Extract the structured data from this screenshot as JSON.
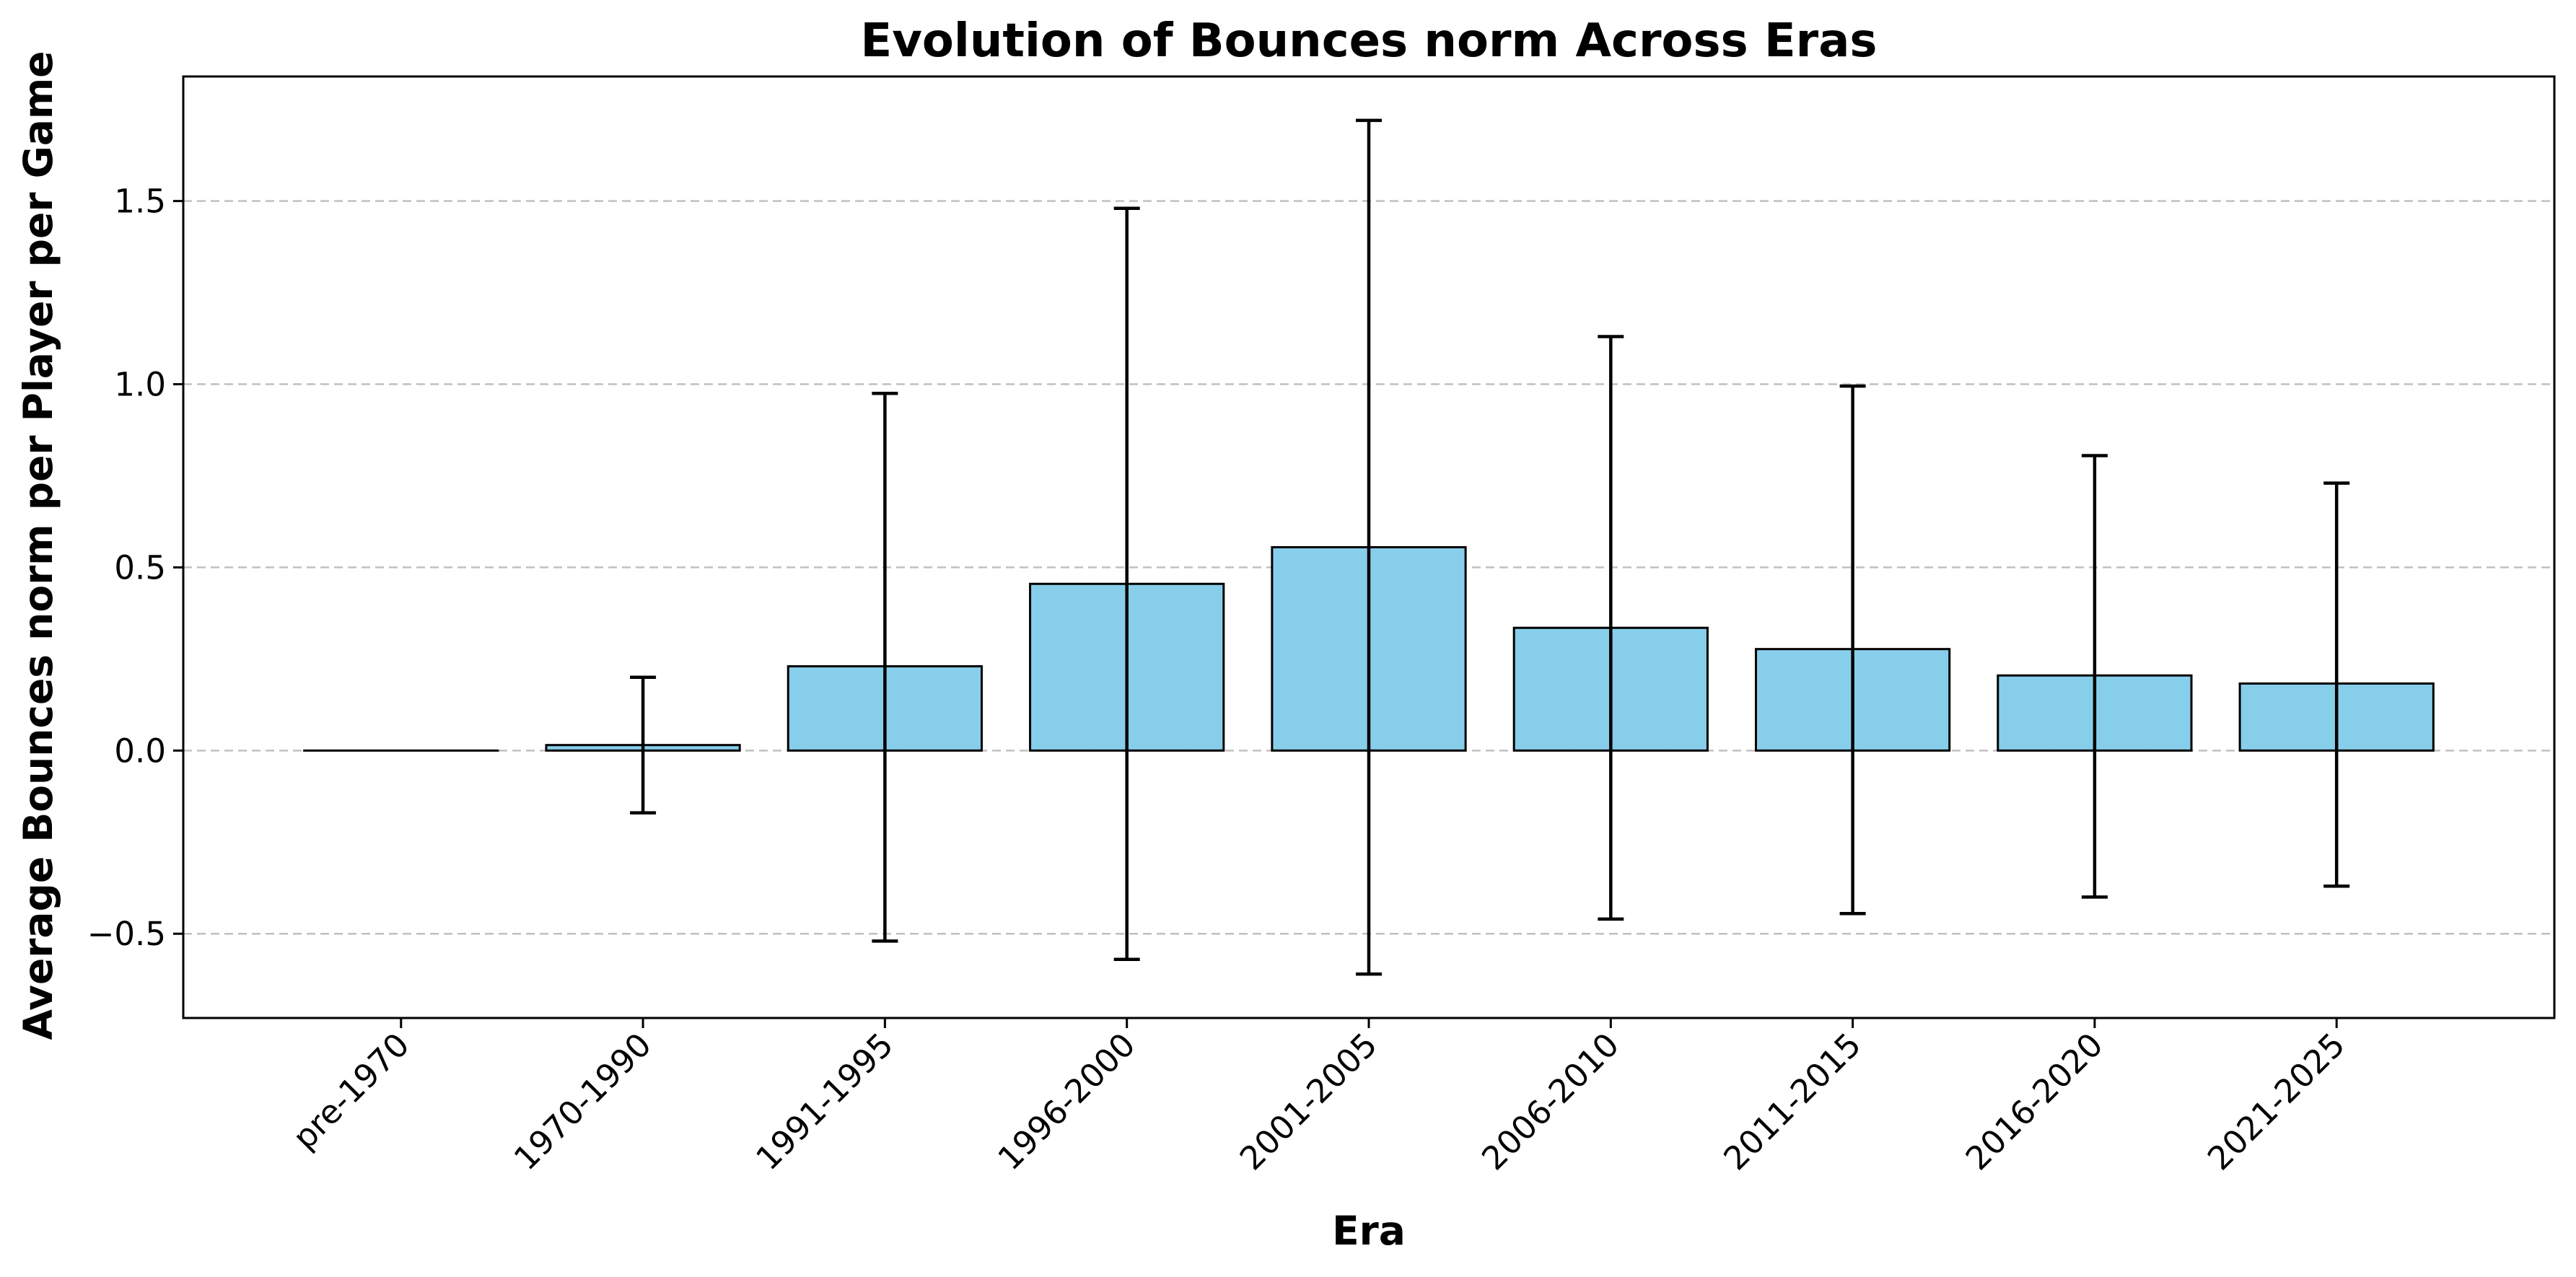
{
  "chart_data": {
    "type": "bar",
    "title": "Evolution of Bounces norm Across Eras",
    "xlabel": "Era",
    "ylabel": "Average Bounces norm per Player per Game",
    "categories": [
      "pre-1970",
      "1970-1990",
      "1991-1995",
      "1996-2000",
      "2001-2005",
      "2006-2010",
      "2011-2015",
      "2016-2020",
      "2021-2025"
    ],
    "values": [
      0.0,
      0.015,
      0.23,
      0.455,
      0.555,
      0.335,
      0.277,
      0.205,
      0.183
    ],
    "error_low": [
      0.0,
      -0.17,
      -0.52,
      -0.57,
      -0.61,
      -0.46,
      -0.445,
      -0.4,
      -0.37
    ],
    "error_high": [
      0.0,
      0.2,
      0.975,
      1.48,
      1.72,
      1.13,
      0.995,
      0.805,
      0.73
    ],
    "ylim": [
      -0.73,
      1.84
    ],
    "yticks": [
      -0.5,
      0.0,
      0.5,
      1.0,
      1.5
    ],
    "ytick_labels": [
      "−0.5",
      "0.0",
      "0.5",
      "1.0",
      "1.5"
    ],
    "grid": "y, dashed",
    "colors": {
      "bar_fill": "#87CEEB",
      "bar_edge": "#000000",
      "error_bar": "#000000",
      "grid": "#c0c0c0"
    }
  }
}
